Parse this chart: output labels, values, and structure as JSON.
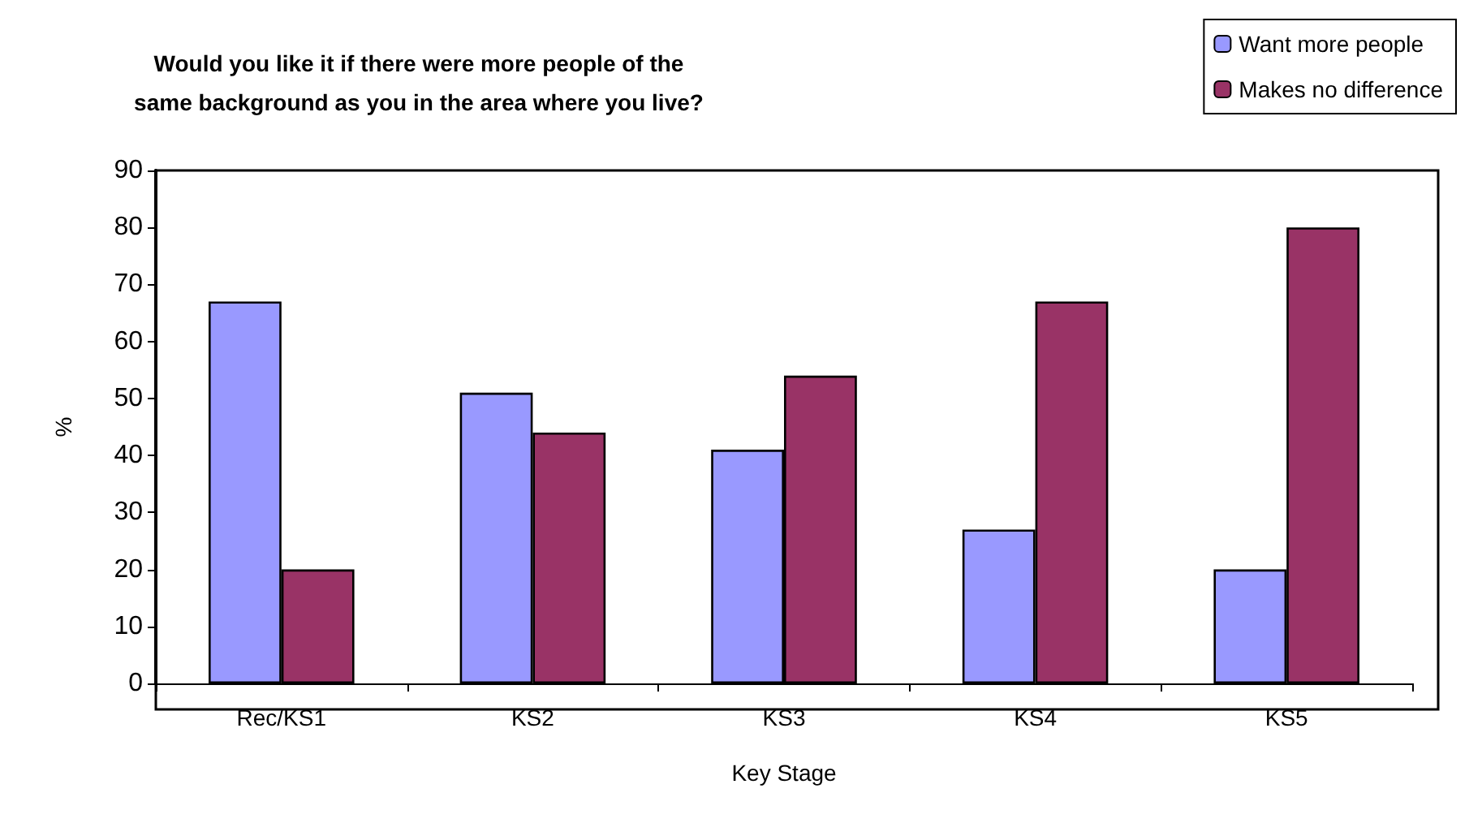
{
  "chart_data": {
    "type": "bar",
    "title": "Would you like it if there were more people of the\nsame background as you in the area where you live?",
    "xlabel": "Key Stage",
    "ylabel": "%",
    "categories": [
      "Rec/KS1",
      "KS2",
      "KS3",
      "KS4",
      "KS5"
    ],
    "series": [
      {
        "name": "Want more people",
        "color": "#9999ff",
        "values": [
          67,
          51,
          41,
          27,
          20
        ]
      },
      {
        "name": "Makes no difference",
        "color": "#993366",
        "values": [
          20,
          44,
          54,
          67,
          80
        ]
      }
    ],
    "ylim": [
      0,
      90
    ],
    "yticks": [
      0,
      10,
      20,
      30,
      40,
      50,
      60,
      70,
      80,
      90
    ],
    "grid": false,
    "legend": "top right"
  }
}
